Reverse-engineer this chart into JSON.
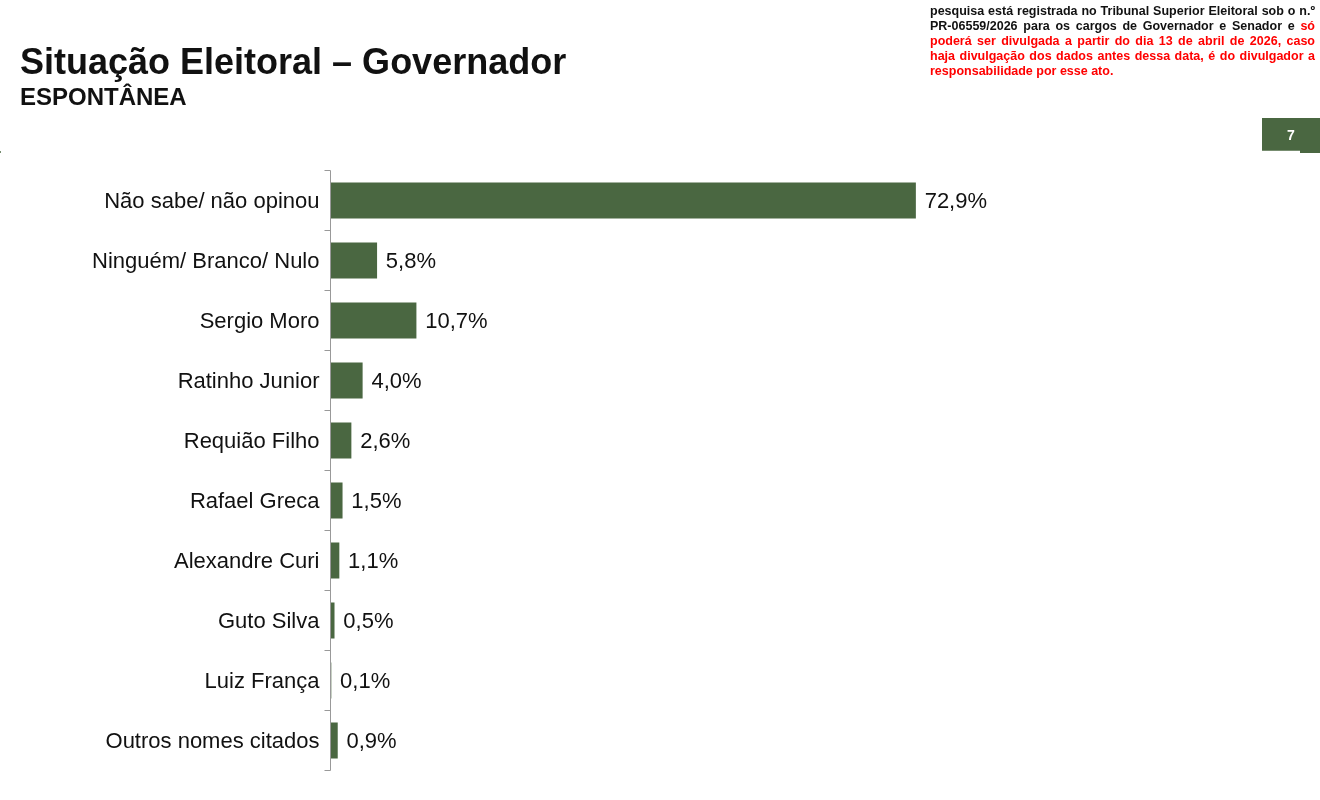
{
  "chart_data": {
    "type": "bar",
    "orientation": "horizontal",
    "title": "Situação Eleitoral – Governador",
    "subtitle": "ESPONTÂNEA",
    "categories": [
      "Não sabe/ não opinou",
      "Ninguém/ Branco/ Nulo",
      "Sergio Moro",
      "Ratinho Junior",
      "Requião Filho",
      "Rafael Greca",
      "Alexandre Curi",
      "Guto Silva",
      "Luiz França",
      "Outros nomes citados"
    ],
    "values": [
      72.9,
      5.8,
      10.7,
      4.0,
      2.6,
      1.5,
      1.1,
      0.5,
      0.1,
      0.9
    ],
    "value_labels": [
      "72,9%",
      "5,8%",
      "10,7%",
      "4,0%",
      "2,6%",
      "1,5%",
      "1,1%",
      "0,5%",
      "0,1%",
      "0,9%"
    ],
    "color": "#4a6741",
    "tick_labels": "y",
    "annotations": [
      "pesquisa está registrada no Tribunal Superior Eleitoral sob o n.º PR-06559/2026 para os cargos de Governador e Senador e",
      "só poderá ser divulgada a partir do dia 13 de abril de 2026, caso haja divulgação dos dados antes dessa data, é do divulgador a responsabilidade por esse ato.",
      "7"
    ]
  }
}
